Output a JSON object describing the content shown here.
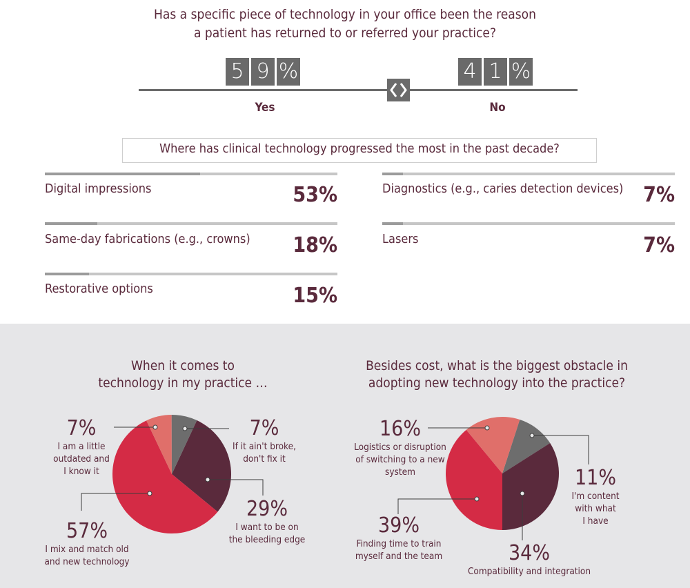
{
  "top_question": {
    "line1": "Has a specific piece of technology in your office been the reason",
    "line2": "a patient has returned to or referred your practice?"
  },
  "yes_no": {
    "yes": {
      "digits": [
        "5",
        "9",
        "%"
      ],
      "label": "Yes",
      "value": 59
    },
    "no": {
      "digits": [
        "4",
        "1",
        "%"
      ],
      "label": "No",
      "value": 41
    },
    "divider_icon": "diamond-arrows-icon"
  },
  "progress": {
    "question": "Where has clinical technology progressed the most in the past decade?",
    "items": [
      {
        "label": "Digital impressions",
        "pct": "53%",
        "value": 53
      },
      {
        "label": "Same-day fabrications (e.g., crowns)",
        "pct": "18%",
        "value": 18
      },
      {
        "label": "Restorative options",
        "pct": "15%",
        "value": 15
      },
      {
        "label": "Diagnostics (e.g., caries detection devices)",
        "pct": "7%",
        "value": 7
      },
      {
        "label": "Lasers",
        "pct": "7%",
        "value": 7
      }
    ]
  },
  "pie1": {
    "title_line1": "When it comes to",
    "title_line2": "technology in my practice …",
    "labels": [
      {
        "pct": "7%",
        "lines": [
          "I am a little",
          "outdated and",
          "I know it"
        ]
      },
      {
        "pct": "7%",
        "lines": [
          "If it ain't broke,",
          "don't fix it"
        ]
      },
      {
        "pct": "29%",
        "lines": [
          "I want to be on",
          "the bleeding edge"
        ]
      },
      {
        "pct": "57%",
        "lines": [
          "I mix and match old",
          "and new technology"
        ]
      }
    ]
  },
  "pie2": {
    "title_line1": "Besides cost, what is the biggest obstacle in",
    "title_line2": "adopting new technology into the practice?",
    "labels": [
      {
        "pct": "16%",
        "lines": [
          "Logistics or disruption",
          "of switching to a new",
          "system"
        ]
      },
      {
        "pct": "11%",
        "lines": [
          "I'm content",
          "with what",
          "I have"
        ]
      },
      {
        "pct": "39%",
        "lines": [
          "Finding time to train",
          "myself and the team"
        ]
      },
      {
        "pct": "34%",
        "lines": [
          "Compatibility and integration"
        ]
      }
    ]
  },
  "colors": {
    "plum": "#5a2a3c",
    "red": "#d42b45",
    "salmon": "#e06f6a",
    "gray": "#6d6d6d",
    "panel": "#e6e6e8"
  },
  "chart_data": [
    {
      "type": "bar",
      "title": "Has a specific piece of technology in your office been the reason a patient has returned to or referred your practice?",
      "categories": [
        "Yes",
        "No"
      ],
      "values": [
        59,
        41
      ]
    },
    {
      "type": "bar",
      "title": "Where has clinical technology progressed the most in the past decade?",
      "categories": [
        "Digital impressions",
        "Same-day fabrications (e.g., crowns)",
        "Restorative options",
        "Diagnostics (e.g., caries detection devices)",
        "Lasers"
      ],
      "values": [
        53,
        18,
        15,
        7,
        7
      ]
    },
    {
      "type": "pie",
      "title": "When it comes to technology in my practice …",
      "categories": [
        "I want to be on the bleeding edge",
        "I mix and match old and new technology",
        "I am a little outdated and I know it",
        "If it ain't broke, don't fix it"
      ],
      "values": [
        29,
        57,
        7,
        7
      ]
    },
    {
      "type": "pie",
      "title": "Besides cost, what is the biggest obstacle in adopting new technology into the practice?",
      "categories": [
        "I'm content with what I have",
        "Compatibility and integration",
        "Finding time to train myself and the team",
        "Logistics or disruption of switching to a new system"
      ],
      "values": [
        11,
        34,
        39,
        16
      ]
    }
  ]
}
